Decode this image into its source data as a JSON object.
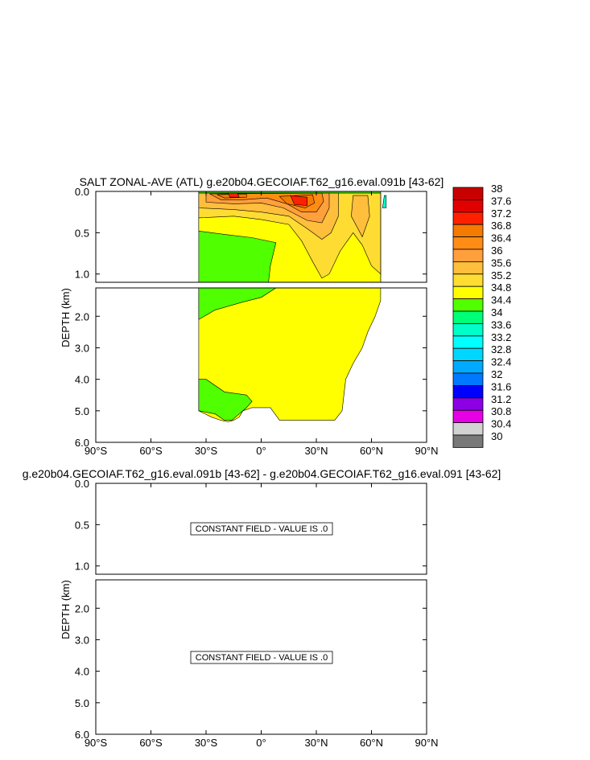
{
  "chart_data": [
    {
      "type": "contour",
      "title": "SALT ZONAL-AVE (ATL) g.e20b04.GECOIAF.T62_g16.eval.091b [43-62]",
      "ylabel": "DEPTH (km)",
      "x_ticks": [
        "90°S",
        "60°S",
        "30°S",
        "0°",
        "30°N",
        "60°N",
        "90°N"
      ],
      "x_values": [
        -90,
        -60,
        -30,
        0,
        30,
        60,
        90
      ],
      "upper_y_ticks": [
        "0.0",
        "0.5",
        "1.0"
      ],
      "upper_y_values": [
        0.0,
        0.5,
        1.0
      ],
      "lower_y_ticks": [
        "2.0",
        "3.0",
        "4.0",
        "5.0",
        "6.0"
      ],
      "lower_y_values": [
        2.0,
        3.0,
        4.0,
        5.0,
        6.0
      ],
      "upper_ylim": [
        0.0,
        1.1
      ],
      "lower_ylim": [
        1.1,
        6.0
      ],
      "regions_upper": [
        {
          "level": 34.4,
          "points": [
            [
              -34,
              0
            ],
            [
              -34,
              1.1
            ],
            [
              65,
              1.1
            ],
            [
              65,
              0
            ]
          ]
        },
        {
          "level": 34.8,
          "points": [
            [
              -34,
              0.02
            ],
            [
              -34,
              0.48
            ],
            [
              -20,
              0.52
            ],
            [
              -5,
              0.56
            ],
            [
              8,
              0.62
            ],
            [
              5,
              0.9
            ],
            [
              4,
              1.1
            ],
            [
              65,
              1.1
            ],
            [
              65,
              0.02
            ]
          ]
        },
        {
          "level": 35.2,
          "points": [
            [
              -34,
              0.02
            ],
            [
              -34,
              0.32
            ],
            [
              -15,
              0.3
            ],
            [
              0,
              0.34
            ],
            [
              15,
              0.4
            ],
            [
              22,
              0.6
            ],
            [
              28,
              0.85
            ],
            [
              33,
              1.05
            ],
            [
              37,
              1.0
            ],
            [
              43,
              0.72
            ],
            [
              50,
              0.5
            ],
            [
              55,
              0.65
            ],
            [
              60,
              0.9
            ],
            [
              65,
              1.0
            ],
            [
              65,
              0.02
            ]
          ]
        },
        {
          "level": 35.6,
          "points": [
            [
              -34,
              0.02
            ],
            [
              -34,
              0.2
            ],
            [
              -15,
              0.22
            ],
            [
              0,
              0.25
            ],
            [
              15,
              0.3
            ],
            [
              25,
              0.45
            ],
            [
              33,
              0.58
            ],
            [
              38,
              0.5
            ],
            [
              42,
              0.3
            ],
            [
              42,
              0.02
            ]
          ]
        },
        {
          "level": 35.6,
          "points": [
            [
              50,
              0.05
            ],
            [
              49,
              0.3
            ],
            [
              55,
              0.55
            ],
            [
              59,
              0.3
            ],
            [
              58,
              0.05
            ]
          ]
        },
        {
          "level": 36.0,
          "points": [
            [
              -30,
              0.02
            ],
            [
              -30,
              0.13
            ],
            [
              -15,
              0.15
            ],
            [
              0,
              0.14
            ],
            [
              12,
              0.2
            ],
            [
              25,
              0.35
            ],
            [
              33,
              0.38
            ],
            [
              37,
              0.2
            ],
            [
              37,
              0.02
            ]
          ]
        },
        {
          "level": 36.4,
          "points": [
            [
              -28,
              0.03
            ],
            [
              -22,
              0.1
            ],
            [
              -10,
              0.1
            ],
            [
              3,
              0.08
            ],
            [
              14,
              0.15
            ],
            [
              22,
              0.25
            ],
            [
              30,
              0.25
            ],
            [
              34,
              0.12
            ],
            [
              33,
              0.02
            ]
          ]
        },
        {
          "level": 36.8,
          "points": [
            [
              -24,
              0.04
            ],
            [
              -20,
              0.08
            ],
            [
              -8,
              0.07
            ],
            [
              -8,
              0.03
            ]
          ]
        },
        {
          "level": 36.8,
          "points": [
            [
              10,
              0.06
            ],
            [
              14,
              0.15
            ],
            [
              24,
              0.2
            ],
            [
              29,
              0.14
            ],
            [
              28,
              0.04
            ]
          ]
        },
        {
          "level": 37.2,
          "points": [
            [
              -18,
              0.02
            ],
            [
              -17,
              0.07
            ],
            [
              -12,
              0.07
            ],
            [
              -13,
              0.02
            ]
          ]
        },
        {
          "level": 37.2,
          "points": [
            [
              16,
              0.05
            ],
            [
              18,
              0.16
            ],
            [
              25,
              0.17
            ],
            [
              25,
              0.07
            ]
          ]
        },
        {
          "level": 33.6,
          "points": [
            [
              67,
              0.05
            ],
            [
              66,
              0.2
            ],
            [
              68,
              0.2
            ],
            [
              68,
              0.05
            ]
          ]
        }
      ],
      "regions_lower": [
        {
          "level": 34.8,
          "points": [
            [
              -34,
              1.1
            ],
            [
              -34,
              5.0
            ],
            [
              -27,
              5.2
            ],
            [
              -22,
              5.3
            ],
            [
              -18,
              5.35
            ],
            [
              -15,
              5.3
            ],
            [
              -12,
              5.2
            ],
            [
              -10,
              5.0
            ],
            [
              -5,
              4.9
            ],
            [
              5,
              4.9
            ],
            [
              10,
              5.3
            ],
            [
              40,
              5.3
            ],
            [
              44,
              5.0
            ],
            [
              46,
              4.0
            ],
            [
              50,
              3.5
            ],
            [
              55,
              3.0
            ],
            [
              58,
              2.5
            ],
            [
              62,
              2.0
            ],
            [
              65,
              1.5
            ],
            [
              65,
              1.1
            ]
          ]
        },
        {
          "level": 34.4,
          "points": [
            [
              -34,
              1.1
            ],
            [
              -34,
              2.1
            ],
            [
              -25,
              1.8
            ],
            [
              -10,
              1.55
            ],
            [
              0,
              1.4
            ],
            [
              8,
              1.1
            ]
          ]
        },
        {
          "level": 34.4,
          "points": [
            [
              -34,
              4.0
            ],
            [
              -34,
              5.0
            ],
            [
              -25,
              5.1
            ],
            [
              -20,
              5.3
            ],
            [
              -16,
              5.3
            ],
            [
              -12,
              5.1
            ],
            [
              -8,
              4.9
            ],
            [
              -5,
              4.7
            ],
            [
              -8,
              4.5
            ],
            [
              -20,
              4.4
            ],
            [
              -30,
              4.0
            ]
          ]
        }
      ],
      "legend": {
        "levels": [
          "38",
          "37.6",
          "37.2",
          "36.8",
          "36.4",
          "36",
          "35.6",
          "35.2",
          "34.8",
          "34.4",
          "34",
          "33.6",
          "33.2",
          "32.8",
          "32.4",
          "32",
          "31.6",
          "31.2",
          "30.8",
          "30.4",
          "30"
        ],
        "colors": [
          "#C80000",
          "#E10000",
          "#FF2000",
          "#F57A00",
          "#FF8C14",
          "#FFA03C",
          "#FFBE3C",
          "#FFDC32",
          "#FFFF00",
          "#50FF00",
          "#00FF78",
          "#00FFC8",
          "#00FFFF",
          "#00D7FF",
          "#00AAFF",
          "#0078FF",
          "#0000FF",
          "#8C00E6",
          "#E600E6",
          "#D2D2D2",
          "#787878"
        ]
      }
    },
    {
      "type": "contour",
      "title": "g.e20b04.GECOIAF.T62_g16.eval.091b [43-62] - g.e20b04.GECOIAF.T62_g16.eval.091 [43-62]",
      "ylabel": "DEPTH (km)",
      "x_ticks": [
        "90°S",
        "60°S",
        "30°S",
        "0°",
        "30°N",
        "60°N",
        "90°N"
      ],
      "upper_y_ticks": [
        "0.0",
        "0.5",
        "1.0"
      ],
      "lower_y_ticks": [
        "2.0",
        "3.0",
        "4.0",
        "5.0",
        "6.0"
      ],
      "upper_note": "CONSTANT FIELD - VALUE IS .0",
      "lower_note": "CONSTANT FIELD - VALUE IS .0"
    }
  ]
}
